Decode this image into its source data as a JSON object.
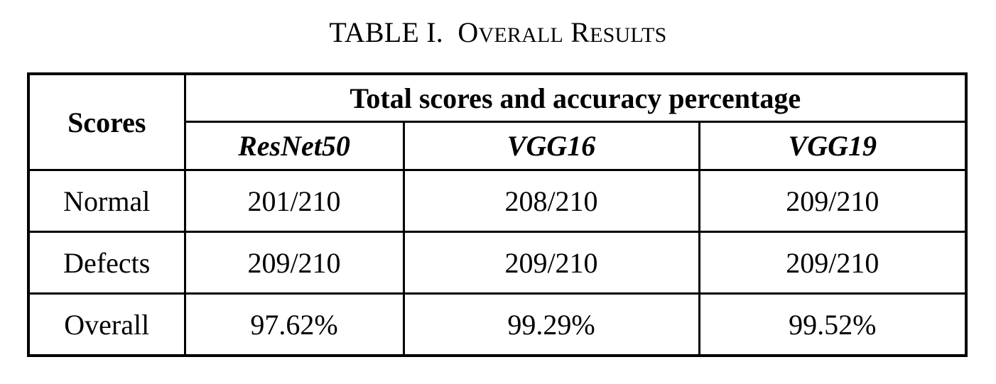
{
  "caption": {
    "label": "TABLE I.",
    "title_parts": [
      {
        "text": "O",
        "size": "big"
      },
      {
        "text": "VERALL",
        "size": "small"
      },
      {
        "text": " ",
        "size": "big"
      },
      {
        "text": "R",
        "size": "big"
      },
      {
        "text": "ESULTS",
        "size": "small"
      }
    ]
  },
  "table": {
    "row_header": "Scores",
    "group_header": "Total scores and accuracy percentage",
    "columns": [
      "ResNet50",
      "VGG16",
      "VGG19"
    ],
    "rows": [
      {
        "label": "Normal",
        "values": [
          "201/210",
          "208/210",
          "209/210"
        ]
      },
      {
        "label": "Defects",
        "values": [
          "209/210",
          "209/210",
          "209/210"
        ]
      },
      {
        "label": "Overall",
        "values": [
          "97.62%",
          "99.29%",
          "99.52%"
        ]
      }
    ]
  }
}
